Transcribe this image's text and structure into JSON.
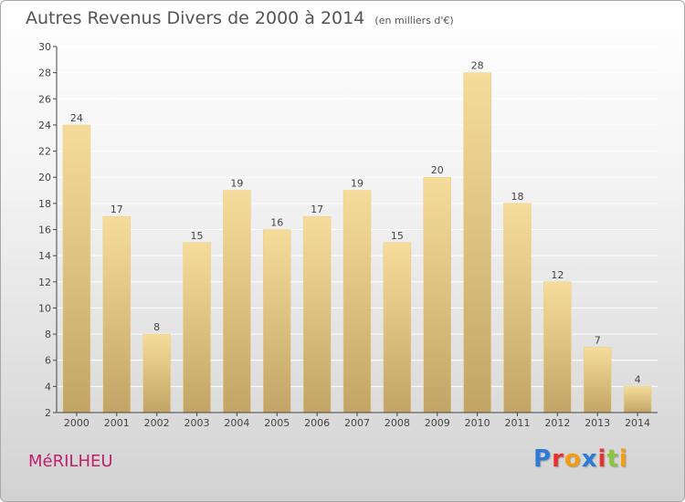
{
  "header": {
    "title": "Autres Revenus Divers de 2000 à 2014",
    "unit": "(en milliers d'€)"
  },
  "footer": {
    "place": "MéRILHEU",
    "logo_text": "Proxiti",
    "logo_colors": [
      "#2e7bd6",
      "#e8312f",
      "#f39c12",
      "#2e7bd6",
      "#e8312f",
      "#8cc63f",
      "#f39c12"
    ]
  },
  "colors": {
    "bar_light": "#f6dc9a",
    "bar_dark": "#c2a566",
    "axis": "#444444",
    "grid": "#ffffff"
  },
  "chart_data": {
    "type": "bar",
    "title": "Autres Revenus Divers de 2000 à 2014",
    "subtitle": "(en milliers d'€)",
    "xlabel": "",
    "ylabel": "",
    "categories": [
      "2000",
      "2001",
      "2002",
      "2003",
      "2004",
      "2005",
      "2006",
      "2007",
      "2008",
      "2009",
      "2010",
      "2011",
      "2012",
      "2013",
      "2014"
    ],
    "values": [
      24,
      17,
      8,
      15,
      19,
      16,
      17,
      19,
      15,
      20,
      28,
      18,
      12,
      7,
      4
    ],
    "ylim": [
      2,
      30
    ],
    "yticks": [
      2,
      4,
      6,
      8,
      10,
      12,
      14,
      16,
      18,
      20,
      22,
      24,
      26,
      28,
      30
    ],
    "data_labels": true,
    "grid": true,
    "legend": "none"
  }
}
